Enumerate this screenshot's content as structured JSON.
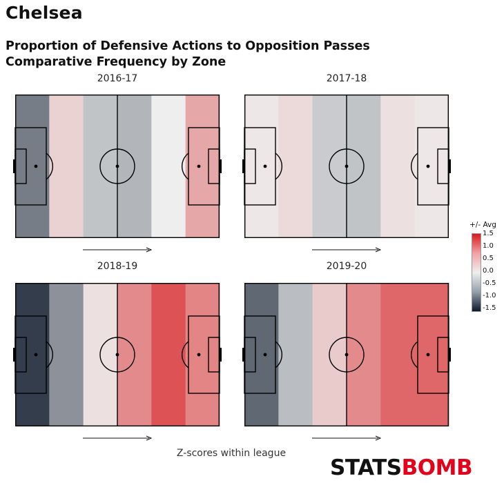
{
  "team": "Chelsea",
  "title_line1": "Proportion of Defensive Actions to Opposition Passes",
  "title_line2": "Comparative Frequency by Zone",
  "footer": "Z-scores within league",
  "brand": {
    "part1": "STATS",
    "part2": "BOMB"
  },
  "colorbar": {
    "title": "+/- Avg",
    "ticks": [
      "1.5",
      "1.0",
      "0.5",
      "0.0",
      "-0.5",
      "-1.0",
      "-1.5"
    ],
    "colors": {
      "high": "#d7191c",
      "mid": "#eeeeee",
      "low": "#0e1a2b"
    }
  },
  "chart_data": {
    "type": "heatmap",
    "title": "Proportion of Defensive Actions to Opposition Passes",
    "subtitle": "Comparative Frequency by Zone",
    "scale_range": [
      -1.5,
      1.5
    ],
    "seasons": [
      {
        "name": "2016-17",
        "zones": [
          -0.8,
          0.2,
          -0.3,
          -0.4,
          0.0,
          0.5
        ]
      },
      {
        "name": "2017-18",
        "zones": [
          0.05,
          0.15,
          -0.25,
          -0.3,
          0.1,
          0.05
        ]
      },
      {
        "name": "2018-19",
        "zones": [
          -1.25,
          -0.65,
          0.1,
          0.7,
          1.1,
          0.75
        ]
      },
      {
        "name": "2019-20",
        "zones": [
          -0.95,
          -0.35,
          0.25,
          0.7,
          0.95,
          0.95
        ]
      }
    ]
  }
}
